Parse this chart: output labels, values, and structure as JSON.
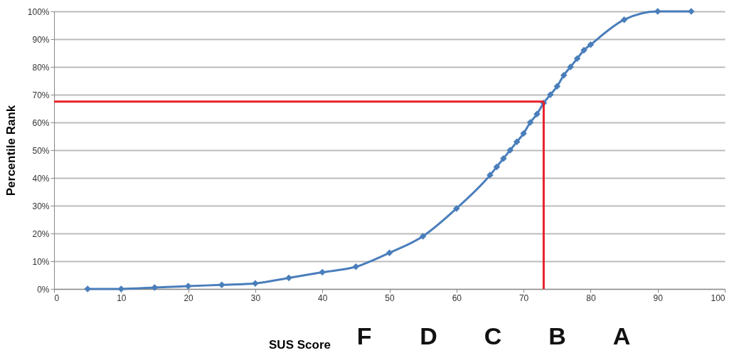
{
  "chart_data": {
    "type": "line",
    "xlabel": "SUS Score",
    "ylabel": "Percentile Rank",
    "x": [
      5,
      10,
      15,
      20,
      25,
      30,
      35,
      40,
      45,
      50,
      55,
      60,
      65,
      66,
      67,
      68,
      69,
      70,
      71,
      72,
      73,
      74,
      75,
      76,
      77,
      78,
      79,
      80,
      85,
      90,
      95
    ],
    "series": [
      {
        "color": "#4a7ebb",
        "values": [
          0,
          0,
          0.5,
          1,
          1.5,
          2,
          4,
          6,
          8,
          13,
          19,
          29,
          41,
          44,
          47,
          50,
          53,
          56,
          60,
          63,
          67,
          70,
          73,
          77,
          80,
          83,
          86,
          88,
          97,
          100,
          100
        ]
      }
    ],
    "xlim": [
      0,
      100
    ],
    "xticks": [
      0,
      10,
      20,
      30,
      40,
      50,
      60,
      70,
      80,
      90,
      100
    ],
    "ylim": [
      0,
      100
    ],
    "yticks": [
      {
        "value": 0,
        "label": "0%"
      },
      {
        "value": 10,
        "label": "10%"
      },
      {
        "value": 20,
        "label": "20%"
      },
      {
        "value": 30,
        "label": "30%"
      },
      {
        "value": 40,
        "label": "40%"
      },
      {
        "value": 50,
        "label": "50%"
      },
      {
        "value": 60,
        "label": "60%"
      },
      {
        "value": 70,
        "label": "70%"
      },
      {
        "value": 80,
        "label": "80%"
      },
      {
        "value": 90,
        "label": "90%"
      },
      {
        "value": 100,
        "label": "100%"
      }
    ],
    "ref_lines": [
      {
        "axis": "y",
        "value": 67.5,
        "color": "#e8202a"
      },
      {
        "axis": "x",
        "value": 73,
        "color": "#e8202a"
      }
    ],
    "annotations": [
      "F",
      "D",
      "C",
      "B",
      "A"
    ],
    "grid": "y",
    "marker": "diamond",
    "line_style": "solid"
  }
}
